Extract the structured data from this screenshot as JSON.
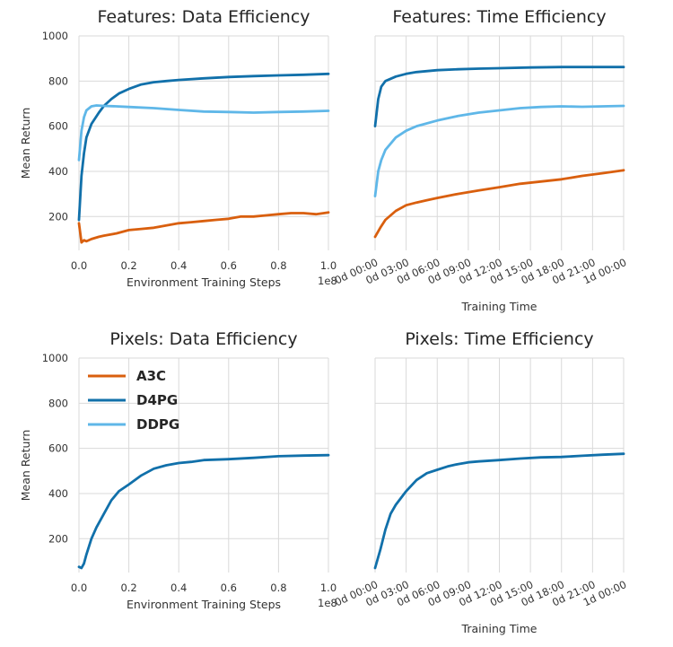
{
  "colors": {
    "A3C": "#d95f0e",
    "D4PG": "#1170aa",
    "DDPG": "#5fb7e8",
    "grid": "#d9d9d9",
    "background": "#ffffff"
  },
  "chart_data": [
    {
      "type": "line",
      "title": "Features: Data Efficiency",
      "xlabel": "Environment Training Steps",
      "x_exponent": "1e8",
      "ylabel": "Mean Return",
      "xlim": [
        0,
        1.0
      ],
      "ylim": [
        50,
        1000
      ],
      "xticks": [
        0.0,
        0.2,
        0.4,
        0.6,
        0.8,
        1.0
      ],
      "xtick_labels": [
        "0.0",
        "0.2",
        "0.4",
        "0.6",
        "0.8",
        "1.0"
      ],
      "yticks": [
        200,
        400,
        600,
        800,
        1000
      ],
      "ytick_labels": [
        "200",
        "400",
        "600",
        "800",
        "1000"
      ],
      "series": [
        {
          "name": "A3C",
          "color": "#d95f0e",
          "x": [
            0.0,
            0.01,
            0.02,
            0.03,
            0.05,
            0.08,
            0.1,
            0.15,
            0.2,
            0.25,
            0.3,
            0.35,
            0.4,
            0.45,
            0.5,
            0.55,
            0.6,
            0.65,
            0.7,
            0.75,
            0.8,
            0.85,
            0.9,
            0.95,
            1.0
          ],
          "values": [
            170,
            85,
            95,
            90,
            100,
            110,
            115,
            125,
            140,
            145,
            150,
            160,
            170,
            175,
            180,
            185,
            190,
            200,
            200,
            205,
            210,
            215,
            215,
            210,
            218
          ]
        },
        {
          "name": "D4PG",
          "color": "#1170aa",
          "x": [
            0.0,
            0.01,
            0.02,
            0.03,
            0.05,
            0.08,
            0.1,
            0.13,
            0.16,
            0.2,
            0.25,
            0.3,
            0.35,
            0.4,
            0.5,
            0.6,
            0.7,
            0.8,
            0.9,
            1.0
          ],
          "values": [
            185,
            380,
            480,
            550,
            610,
            660,
            690,
            720,
            745,
            765,
            785,
            795,
            800,
            805,
            812,
            818,
            822,
            825,
            828,
            832
          ]
        },
        {
          "name": "DDPG",
          "color": "#5fb7e8",
          "x": [
            0.0,
            0.01,
            0.02,
            0.03,
            0.05,
            0.07,
            0.1,
            0.15,
            0.2,
            0.3,
            0.4,
            0.5,
            0.6,
            0.7,
            0.8,
            0.9,
            1.0
          ],
          "values": [
            450,
            580,
            640,
            670,
            688,
            692,
            690,
            688,
            685,
            680,
            672,
            665,
            663,
            660,
            663,
            665,
            668
          ]
        }
      ]
    },
    {
      "type": "line",
      "title": "Features: Time Efficiency",
      "xlabel": "Training Time",
      "ylabel": "",
      "xlim": [
        0,
        24
      ],
      "ylim": [
        50,
        1000
      ],
      "xticks": [
        0,
        3,
        6,
        9,
        12,
        15,
        18,
        21,
        24
      ],
      "xtick_labels": [
        "0d 00:00",
        "0d 03:00",
        "0d 06:00",
        "0d 09:00",
        "0d 12:00",
        "0d 15:00",
        "0d 18:00",
        "0d 21:00",
        "1d 00:00"
      ],
      "yticks": [
        200,
        400,
        600,
        800,
        1000
      ],
      "series": [
        {
          "name": "A3C",
          "color": "#d95f0e",
          "x": [
            0,
            0.5,
            1,
            2,
            3,
            4,
            5,
            6,
            8,
            10,
            12,
            14,
            16,
            18,
            20,
            22,
            24
          ],
          "values": [
            110,
            150,
            185,
            225,
            250,
            262,
            272,
            282,
            300,
            315,
            330,
            345,
            355,
            365,
            380,
            392,
            405
          ]
        },
        {
          "name": "D4PG",
          "color": "#1170aa",
          "x": [
            0,
            0.3,
            0.6,
            1,
            2,
            3,
            4,
            6,
            8,
            10,
            12,
            15,
            18,
            21,
            24
          ],
          "values": [
            600,
            720,
            775,
            800,
            820,
            832,
            840,
            848,
            852,
            855,
            857,
            860,
            862,
            862,
            862
          ]
        },
        {
          "name": "DDPG",
          "color": "#5fb7e8",
          "x": [
            0,
            0.3,
            0.6,
            1,
            2,
            3,
            4,
            6,
            8,
            10,
            12,
            14,
            16,
            18,
            20,
            22,
            24
          ],
          "values": [
            290,
            400,
            450,
            495,
            550,
            580,
            600,
            625,
            645,
            660,
            670,
            680,
            685,
            688,
            686,
            688,
            690
          ]
        }
      ]
    },
    {
      "type": "line",
      "title": "Pixels: Data Efficiency",
      "xlabel": "Environment Training Steps",
      "x_exponent": "1e8",
      "ylabel": "Mean Return",
      "xlim": [
        0,
        1.0
      ],
      "ylim": [
        50,
        1000
      ],
      "xticks": [
        0.0,
        0.2,
        0.4,
        0.6,
        0.8,
        1.0
      ],
      "xtick_labels": [
        "0.0",
        "0.2",
        "0.4",
        "0.6",
        "0.8",
        "1.0"
      ],
      "yticks": [
        200,
        400,
        600,
        800,
        1000
      ],
      "ytick_labels": [
        "200",
        "400",
        "600",
        "800",
        "1000"
      ],
      "legend": {
        "position": "top-left",
        "entries": [
          "A3C",
          "D4PG",
          "DDPG"
        ]
      },
      "series": [
        {
          "name": "D4PG",
          "color": "#1170aa",
          "x": [
            0.0,
            0.01,
            0.02,
            0.03,
            0.05,
            0.07,
            0.1,
            0.13,
            0.16,
            0.2,
            0.25,
            0.3,
            0.35,
            0.4,
            0.45,
            0.5,
            0.6,
            0.7,
            0.8,
            0.9,
            1.0
          ],
          "values": [
            75,
            70,
            90,
            130,
            200,
            250,
            310,
            370,
            410,
            440,
            480,
            510,
            525,
            535,
            540,
            548,
            552,
            558,
            565,
            568,
            570
          ]
        }
      ]
    },
    {
      "type": "line",
      "title": "Pixels: Time Efficiency",
      "xlabel": "Training Time",
      "ylabel": "",
      "xlim": [
        0,
        24
      ],
      "ylim": [
        50,
        1000
      ],
      "xticks": [
        0,
        3,
        6,
        9,
        12,
        15,
        18,
        21,
        24
      ],
      "xtick_labels": [
        "0d 00:00",
        "0d 03:00",
        "0d 06:00",
        "0d 09:00",
        "0d 12:00",
        "0d 15:00",
        "0d 18:00",
        "0d 21:00",
        "1d 00:00"
      ],
      "yticks": [
        200,
        400,
        600,
        800,
        1000
      ],
      "series": [
        {
          "name": "D4PG",
          "color": "#1170aa",
          "x": [
            0,
            0.5,
            1,
            1.5,
            2,
            3,
            4,
            5,
            6,
            7,
            8,
            9,
            10,
            12,
            14,
            16,
            18,
            20,
            22,
            24
          ],
          "values": [
            70,
            150,
            240,
            310,
            350,
            410,
            460,
            490,
            505,
            520,
            530,
            538,
            542,
            548,
            555,
            560,
            562,
            567,
            572,
            576
          ]
        }
      ]
    }
  ]
}
